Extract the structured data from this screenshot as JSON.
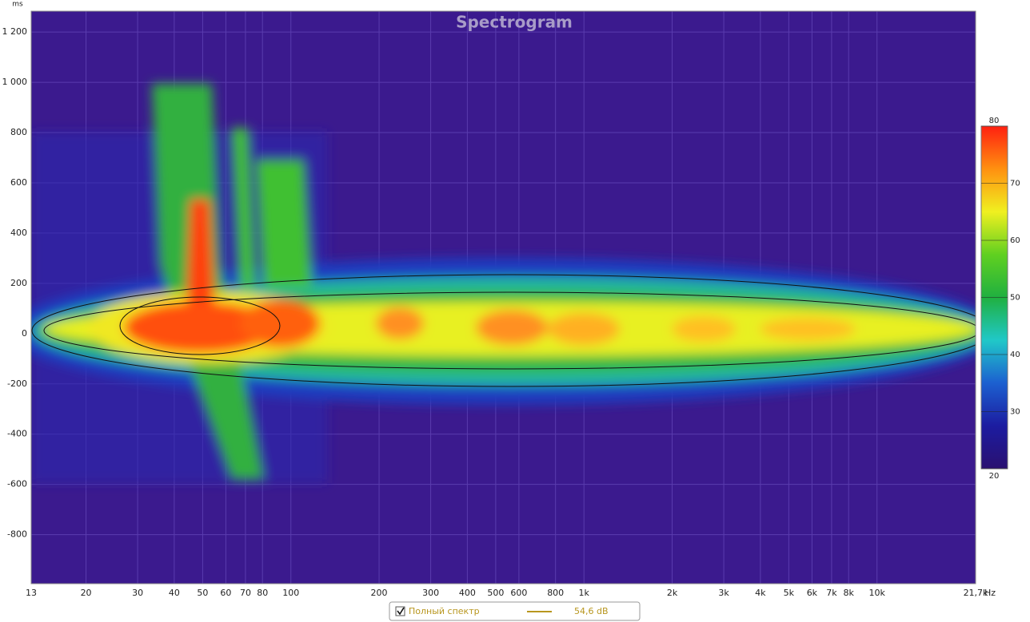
{
  "chart_data": {
    "type": "heatmap",
    "title": "Spectrogram",
    "y_unit": "ms",
    "x_unit": "Hz",
    "x_log": true,
    "grid": true,
    "background": "#3b1a8e",
    "xlim": [
      13,
      21700
    ],
    "xticks": [
      13,
      20,
      30,
      40,
      50,
      60,
      70,
      80,
      100,
      200,
      300,
      400,
      500,
      600,
      800,
      {
        "value": 1000,
        "label": "1k"
      },
      {
        "value": 2000,
        "label": "2k"
      },
      {
        "value": 3000,
        "label": "3k"
      },
      {
        "value": 4000,
        "label": "4k"
      },
      {
        "value": 5000,
        "label": "5k"
      },
      {
        "value": 6000,
        "label": "6k"
      },
      {
        "value": 7000,
        "label": "7k"
      },
      {
        "value": 8000,
        "label": "8k"
      },
      {
        "value": 10000,
        "label": "10k"
      },
      {
        "value": 21700,
        "label": "21,7k"
      }
    ],
    "ylim": [
      -995,
      1283
    ],
    "yticks": [
      {
        "value": 1200,
        "label": "1 200"
      },
      {
        "value": 1000,
        "label": "1 000"
      },
      800,
      600,
      400,
      200,
      0,
      -200,
      -400,
      -600,
      -800
    ],
    "colorbar": {
      "lim": [
        20,
        80
      ],
      "ticks": [
        20,
        30,
        40,
        50,
        60,
        70,
        80
      ],
      "colors": [
        "#2a1070",
        "#1c1ca0",
        "#1c60d0",
        "#20c8c8",
        "#20b040",
        "#60d020",
        "#f0f020",
        "#ff9010",
        "#ff2010"
      ]
    },
    "legend": {
      "checked": true,
      "name": "Полный спектр",
      "color": "#b8961e",
      "value_label": "54,6 dB"
    }
  }
}
